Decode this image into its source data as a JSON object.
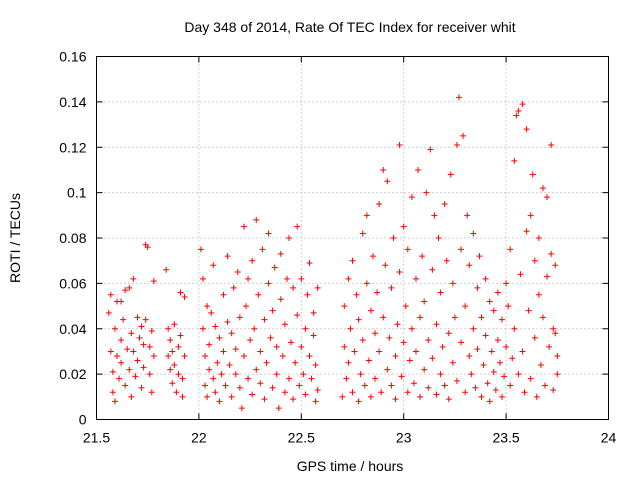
{
  "chart_data": {
    "type": "scatter",
    "title": "Day 348 of 2014, Rate Of TEC Index for receiver whit",
    "xlabel": "GPS time / hours",
    "ylabel": "ROTI / TECUs",
    "xlim": [
      21.5,
      24
    ],
    "ylim": [
      0,
      0.16
    ],
    "xticks": [
      21.5,
      22,
      22.5,
      23,
      23.5,
      24
    ],
    "xtick_labels": [
      "21.5",
      "22",
      "22.5",
      "23",
      "23.5",
      "24"
    ],
    "yticks": [
      0,
      0.02,
      0.04,
      0.06,
      0.08,
      0.1,
      0.12,
      0.14,
      0.16
    ],
    "ytick_labels": [
      "0",
      "0.02",
      "0.04",
      "0.06",
      "0.08",
      "0.1",
      "0.12",
      "0.14",
      "0.16"
    ],
    "grid": true,
    "marker": "+",
    "color": "#ff0000",
    "series": [
      {
        "name": "ROTI",
        "points": [
          [
            21.56,
            0.047
          ],
          [
            21.57,
            0.055
          ],
          [
            21.57,
            0.03
          ],
          [
            21.58,
            0.021
          ],
          [
            21.58,
            0.012
          ],
          [
            21.59,
            0.008
          ],
          [
            21.59,
            0.04
          ],
          [
            21.6,
            0.052
          ],
          [
            21.6,
            0.028
          ],
          [
            21.61,
            0.018
          ],
          [
            21.62,
            0.035
          ],
          [
            21.62,
            0.025
          ],
          [
            21.63,
            0.044
          ],
          [
            21.64,
            0.057
          ],
          [
            21.64,
            0.015
          ],
          [
            21.65,
            0.031
          ],
          [
            21.66,
            0.022
          ],
          [
            21.66,
            0.058
          ],
          [
            21.67,
            0.01
          ],
          [
            21.67,
            0.038
          ],
          [
            21.68,
            0.03
          ],
          [
            21.69,
            0.019
          ],
          [
            21.7,
            0.045
          ],
          [
            21.7,
            0.026
          ],
          [
            21.71,
            0.036
          ],
          [
            21.72,
            0.041
          ],
          [
            21.72,
            0.014
          ],
          [
            21.73,
            0.033
          ],
          [
            21.73,
            0.023
          ],
          [
            21.74,
            0.044
          ],
          [
            21.74,
            0.077
          ],
          [
            21.75,
            0.076
          ],
          [
            21.76,
            0.032
          ],
          [
            21.76,
            0.02
          ],
          [
            21.77,
            0.039
          ],
          [
            21.77,
            0.012
          ],
          [
            21.78,
            0.061
          ],
          [
            21.78,
            0.028
          ],
          [
            21.68,
            0.062
          ],
          [
            21.62,
            0.052
          ],
          [
            21.84,
            0.066
          ],
          [
            21.85,
            0.04
          ],
          [
            21.85,
            0.028
          ],
          [
            21.86,
            0.022
          ],
          [
            21.86,
            0.035
          ],
          [
            21.87,
            0.016
          ],
          [
            21.87,
            0.03
          ],
          [
            21.88,
            0.024
          ],
          [
            21.88,
            0.042
          ],
          [
            21.89,
            0.012
          ],
          [
            21.9,
            0.032
          ],
          [
            21.9,
            0.02
          ],
          [
            21.91,
            0.037
          ],
          [
            21.91,
            0.056
          ],
          [
            21.92,
            0.018
          ],
          [
            21.92,
            0.01
          ],
          [
            21.93,
            0.028
          ],
          [
            21.93,
            0.054
          ],
          [
            22.01,
            0.075
          ],
          [
            22.02,
            0.062
          ],
          [
            22.02,
            0.04
          ],
          [
            22.03,
            0.028
          ],
          [
            22.03,
            0.015
          ],
          [
            22.04,
            0.01
          ],
          [
            22.04,
            0.05
          ],
          [
            22.05,
            0.022
          ],
          [
            22.05,
            0.033
          ],
          [
            22.06,
            0.047
          ],
          [
            22.07,
            0.018
          ],
          [
            22.07,
            0.068
          ],
          [
            22.08,
            0.012
          ],
          [
            22.08,
            0.041
          ],
          [
            22.09,
            0.025
          ],
          [
            22.1,
            0.036
          ],
          [
            22.1,
            0.008
          ],
          [
            22.11,
            0.02
          ],
          [
            22.12,
            0.055
          ],
          [
            22.12,
            0.03
          ],
          [
            22.13,
            0.015
          ],
          [
            22.14,
            0.043
          ],
          [
            22.14,
            0.072
          ],
          [
            22.15,
            0.024
          ],
          [
            22.16,
            0.01
          ],
          [
            22.16,
            0.038
          ],
          [
            22.17,
            0.058
          ],
          [
            22.18,
            0.02
          ],
          [
            22.18,
            0.031
          ],
          [
            22.19,
            0.065
          ],
          [
            22.2,
            0.014
          ],
          [
            22.2,
            0.045
          ],
          [
            22.21,
            0.005
          ],
          [
            22.22,
            0.085
          ],
          [
            22.22,
            0.028
          ],
          [
            22.23,
            0.05
          ],
          [
            22.24,
            0.018
          ],
          [
            22.24,
            0.062
          ],
          [
            22.25,
            0.035
          ],
          [
            22.26,
            0.011
          ],
          [
            22.26,
            0.07
          ],
          [
            22.27,
            0.04
          ],
          [
            22.28,
            0.022
          ],
          [
            22.28,
            0.088
          ],
          [
            22.29,
            0.055
          ],
          [
            22.3,
            0.016
          ],
          [
            22.3,
            0.03
          ],
          [
            22.31,
            0.075
          ],
          [
            22.32,
            0.044
          ],
          [
            22.32,
            0.009
          ],
          [
            22.33,
            0.025
          ],
          [
            22.34,
            0.06
          ],
          [
            22.34,
            0.082
          ],
          [
            22.35,
            0.036
          ],
          [
            22.36,
            0.014
          ],
          [
            22.36,
            0.048
          ],
          [
            22.37,
            0.067
          ],
          [
            22.38,
            0.02
          ],
          [
            22.38,
            0.032
          ],
          [
            22.39,
            0.005
          ],
          [
            22.4,
            0.053
          ],
          [
            22.4,
            0.073
          ],
          [
            22.41,
            0.028
          ],
          [
            22.42,
            0.012
          ],
          [
            22.42,
            0.042
          ],
          [
            22.43,
            0.062
          ],
          [
            22.44,
            0.018
          ],
          [
            22.44,
            0.08
          ],
          [
            22.45,
            0.034
          ],
          [
            22.46,
            0.009
          ],
          [
            22.46,
            0.058
          ],
          [
            22.47,
            0.025
          ],
          [
            22.48,
            0.046
          ],
          [
            22.48,
            0.085
          ],
          [
            22.49,
            0.015
          ],
          [
            22.5,
            0.032
          ],
          [
            22.5,
            0.062
          ],
          [
            22.51,
            0.02
          ],
          [
            22.52,
            0.04
          ],
          [
            22.52,
            0.011
          ],
          [
            22.53,
            0.055
          ],
          [
            22.54,
            0.028
          ],
          [
            22.54,
            0.069
          ],
          [
            22.55,
            0.018
          ],
          [
            22.56,
            0.037
          ],
          [
            22.56,
            0.047
          ],
          [
            22.57,
            0.008
          ],
          [
            22.57,
            0.024
          ],
          [
            22.58,
            0.058
          ],
          [
            22.58,
            0.013
          ],
          [
            22.7,
            0.01
          ],
          [
            22.71,
            0.032
          ],
          [
            22.71,
            0.05
          ],
          [
            22.72,
            0.018
          ],
          [
            22.73,
            0.062
          ],
          [
            22.73,
            0.025
          ],
          [
            22.74,
            0.04
          ],
          [
            22.75,
            0.012
          ],
          [
            22.75,
            0.07
          ],
          [
            22.76,
            0.03
          ],
          [
            22.77,
            0.055
          ],
          [
            22.78,
            0.008
          ],
          [
            22.78,
            0.044
          ],
          [
            22.79,
            0.02
          ],
          [
            22.8,
            0.082
          ],
          [
            22.8,
            0.035
          ],
          [
            22.81,
            0.015
          ],
          [
            22.82,
            0.06
          ],
          [
            22.82,
            0.09
          ],
          [
            22.83,
            0.026
          ],
          [
            22.84,
            0.048
          ],
          [
            22.84,
            0.01
          ],
          [
            22.85,
            0.072
          ],
          [
            22.86,
            0.038
          ],
          [
            22.86,
            0.018
          ],
          [
            22.87,
            0.056
          ],
          [
            22.88,
            0.095
          ],
          [
            22.88,
            0.03
          ],
          [
            22.89,
            0.012
          ],
          [
            22.9,
            0.045
          ],
          [
            22.9,
            0.11
          ],
          [
            22.91,
            0.068
          ],
          [
            22.92,
            0.022
          ],
          [
            22.92,
            0.105
          ],
          [
            22.93,
            0.036
          ],
          [
            22.94,
            0.015
          ],
          [
            22.94,
            0.058
          ],
          [
            22.95,
            0.08
          ],
          [
            22.96,
            0.028
          ],
          [
            22.96,
            0.009
          ],
          [
            22.97,
            0.042
          ],
          [
            22.98,
            0.121
          ],
          [
            22.98,
            0.065
          ],
          [
            22.99,
            0.019
          ],
          [
            23.0,
            0.034
          ],
          [
            23.0,
            0.085
          ],
          [
            23.01,
            0.05
          ],
          [
            23.02,
            0.012
          ],
          [
            23.02,
            0.075
          ],
          [
            23.03,
            0.026
          ],
          [
            23.04,
            0.04
          ],
          [
            23.04,
            0.098
          ],
          [
            23.05,
            0.016
          ],
          [
            23.06,
            0.062
          ],
          [
            23.06,
            0.03
          ],
          [
            23.07,
            0.11
          ],
          [
            23.08,
            0.045
          ],
          [
            23.08,
            0.01
          ],
          [
            23.09,
            0.072
          ],
          [
            23.1,
            0.022
          ],
          [
            23.1,
            0.052
          ],
          [
            23.11,
            0.1
          ],
          [
            23.12,
            0.035
          ],
          [
            23.12,
            0.014
          ],
          [
            23.13,
            0.119
          ],
          [
            23.14,
            0.066
          ],
          [
            23.14,
            0.027
          ],
          [
            23.15,
            0.09
          ],
          [
            23.16,
            0.042
          ],
          [
            23.16,
            0.011
          ],
          [
            23.17,
            0.08
          ],
          [
            23.18,
            0.02
          ],
          [
            23.18,
            0.056
          ],
          [
            23.19,
            0.032
          ],
          [
            23.2,
            0.095
          ],
          [
            23.2,
            0.015
          ],
          [
            23.21,
            0.07
          ],
          [
            23.22,
            0.038
          ],
          [
            23.22,
            0.009
          ],
          [
            23.23,
            0.108
          ],
          [
            23.24,
            0.025
          ],
          [
            23.24,
            0.06
          ],
          [
            23.25,
            0.045
          ],
          [
            23.26,
            0.121
          ],
          [
            23.26,
            0.017
          ],
          [
            23.27,
            0.142
          ],
          [
            23.28,
            0.075
          ],
          [
            23.28,
            0.034
          ],
          [
            23.29,
            0.125
          ],
          [
            23.3,
            0.012
          ],
          [
            23.3,
            0.05
          ],
          [
            23.31,
            0.09
          ],
          [
            23.32,
            0.028
          ],
          [
            23.32,
            0.068
          ],
          [
            23.33,
            0.02
          ],
          [
            23.34,
            0.04
          ],
          [
            23.34,
            0.082
          ],
          [
            23.35,
            0.014
          ],
          [
            23.36,
            0.058
          ],
          [
            23.36,
            0.031
          ],
          [
            23.37,
            0.072
          ],
          [
            23.38,
            0.01
          ],
          [
            23.38,
            0.045
          ],
          [
            23.39,
            0.024
          ],
          [
            23.4,
            0.062
          ],
          [
            23.4,
            0.037
          ],
          [
            23.41,
            0.016
          ],
          [
            23.42,
            0.052
          ],
          [
            23.42,
            0.008
          ],
          [
            23.43,
            0.03
          ],
          [
            23.44,
            0.048
          ],
          [
            23.44,
            0.021
          ],
          [
            23.45,
            0.013
          ],
          [
            23.46,
            0.056
          ],
          [
            23.46,
            0.035
          ],
          [
            23.47,
            0.025
          ],
          [
            23.48,
            0.044
          ],
          [
            23.48,
            0.01
          ],
          [
            23.49,
            0.019
          ],
          [
            23.5,
            0.06
          ],
          [
            23.5,
            0.032
          ],
          [
            23.51,
            0.05
          ],
          [
            23.52,
            0.015
          ],
          [
            23.52,
            0.075
          ],
          [
            23.53,
            0.027
          ],
          [
            23.54,
            0.114
          ],
          [
            23.54,
            0.04
          ],
          [
            23.55,
            0.134
          ],
          [
            23.56,
            0.02
          ],
          [
            23.56,
            0.136
          ],
          [
            23.57,
            0.064
          ],
          [
            23.58,
            0.139
          ],
          [
            23.58,
            0.03
          ],
          [
            23.59,
            0.012
          ],
          [
            23.6,
            0.128
          ],
          [
            23.6,
            0.083
          ],
          [
            23.61,
            0.048
          ],
          [
            23.62,
            0.018
          ],
          [
            23.62,
            0.09
          ],
          [
            23.63,
            0.108
          ],
          [
            23.64,
            0.036
          ],
          [
            23.64,
            0.07
          ],
          [
            23.65,
            0.01
          ],
          [
            23.66,
            0.08
          ],
          [
            23.66,
            0.055
          ],
          [
            23.67,
            0.024
          ],
          [
            23.68,
            0.045
          ],
          [
            23.68,
            0.102
          ],
          [
            23.69,
            0.015
          ],
          [
            23.7,
            0.063
          ],
          [
            23.7,
            0.098
          ],
          [
            23.71,
            0.032
          ],
          [
            23.72,
            0.121
          ],
          [
            23.72,
            0.073
          ],
          [
            23.73,
            0.04
          ],
          [
            23.73,
            0.013
          ],
          [
            23.74,
            0.038
          ],
          [
            23.74,
            0.068
          ],
          [
            23.75,
            0.02
          ],
          [
            23.75,
            0.028
          ]
        ]
      }
    ]
  }
}
